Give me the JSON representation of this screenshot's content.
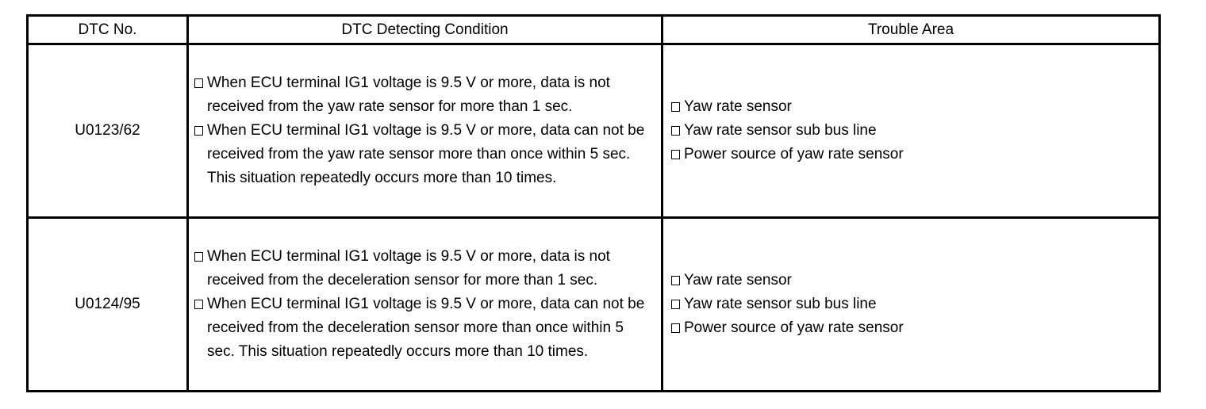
{
  "colors": {
    "border": "#000000",
    "text": "#000000",
    "background": "#ffffff"
  },
  "icons": {
    "bullet": "hollow-square-bullet"
  },
  "table": {
    "columns": [
      "DTC No.",
      "DTC Detecting Condition",
      "Trouble Area"
    ],
    "rows": [
      {
        "dtc_no": "U0123/62",
        "conditions": [
          "When ECU terminal IG1 voltage is 9.5 V or more, data is not received from the yaw rate sensor for more than 1 sec.",
          "When ECU terminal IG1 voltage is 9.5 V or more, data can not be received from the yaw rate sensor more than once within 5 sec. This situation repeatedly occurs more than 10 times."
        ],
        "trouble_areas": [
          "Yaw rate sensor",
          "Yaw rate sensor sub bus line",
          "Power source of yaw rate sensor"
        ]
      },
      {
        "dtc_no": "U0124/95",
        "conditions": [
          "When ECU terminal IG1 voltage is 9.5 V or more, data is not received from the deceleration sensor for more than 1 sec.",
          "When ECU terminal IG1 voltage is 9.5 V or more, data can not be received from the deceleration sensor more than once within 5 sec. This situation repeatedly occurs more than 10 times."
        ],
        "trouble_areas": [
          "Yaw rate sensor",
          "Yaw rate sensor sub bus line",
          "Power source of yaw rate sensor"
        ]
      }
    ]
  }
}
